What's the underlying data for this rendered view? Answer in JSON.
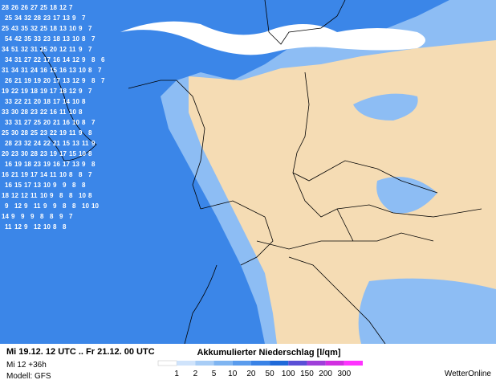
{
  "header": {
    "period": "Mi 19.12. 12 UTC .. Fr 21.12. 00 UTC",
    "run": "Mi 12 +36h",
    "model": "Modell: GFS",
    "brand": "WetterOnline"
  },
  "legend": {
    "title": "Akkumulierter Niederschlag [l/qm]",
    "labels": [
      "1",
      "2",
      "5",
      "10",
      "20",
      "50",
      "100",
      "150",
      "200",
      "300"
    ],
    "colors": [
      "#ffffff",
      "#cfe3fb",
      "#a8cdf6",
      "#7fb5f1",
      "#5a9ced",
      "#3a83e6",
      "#1f6ad9",
      "#5a4fd6",
      "#9f3fd9",
      "#d22fe0",
      "#ff33ff"
    ]
  },
  "precip_labels": [
    [
      28,
      26,
      26,
      27,
      25,
      18,
      12,
      7
    ],
    [
      25,
      34,
      32,
      28,
      23,
      17,
      13,
      9,
      7
    ],
    [
      25,
      43,
      35,
      32,
      25,
      18,
      13,
      10,
      9,
      7
    ],
    [
      54,
      42,
      35,
      33,
      23,
      18,
      13,
      10,
      8,
      7
    ],
    [
      34,
      51,
      32,
      31,
      25,
      20,
      12,
      11,
      9,
      7
    ],
    [
      34,
      31,
      27,
      22,
      17,
      16,
      14,
      12,
      9,
      8,
      6
    ],
    [
      31,
      34,
      31,
      24,
      16,
      15,
      16,
      13,
      10,
      8,
      7
    ],
    [
      26,
      21,
      19,
      19,
      20,
      17,
      13,
      12,
      9,
      8,
      7
    ],
    [
      19,
      22,
      19,
      18,
      19,
      17,
      18,
      12,
      9,
      7
    ],
    [
      33,
      22,
      21,
      20,
      18,
      17,
      14,
      10,
      8
    ],
    [
      33,
      30,
      28,
      23,
      22,
      16,
      11,
      10,
      8
    ],
    [
      33,
      31,
      27,
      25,
      20,
      21,
      16,
      10,
      8,
      7
    ],
    [
      25,
      30,
      28,
      25,
      23,
      22,
      19,
      11,
      9,
      8
    ],
    [
      28,
      23,
      32,
      24,
      22,
      21,
      15,
      13,
      11,
      9
    ],
    [
      20,
      23,
      30,
      28,
      23,
      19,
      17,
      15,
      10,
      8
    ],
    [
      16,
      19,
      18,
      23,
      19,
      16,
      17,
      13,
      9,
      8
    ],
    [
      16,
      21,
      19,
      17,
      14,
      11,
      10,
      8,
      8,
      7
    ],
    [
      16,
      15,
      17,
      13,
      10,
      9,
      9,
      8,
      8
    ],
    [
      18,
      12,
      12,
      11,
      10,
      9,
      8,
      8,
      10,
      8
    ],
    [
      9,
      12,
      9,
      11,
      9,
      9,
      8,
      8,
      10,
      10
    ],
    [
      14,
      9,
      9,
      9,
      8,
      8,
      9,
      7
    ],
    [
      11,
      12,
      9,
      12,
      10,
      8,
      8
    ]
  ]
}
